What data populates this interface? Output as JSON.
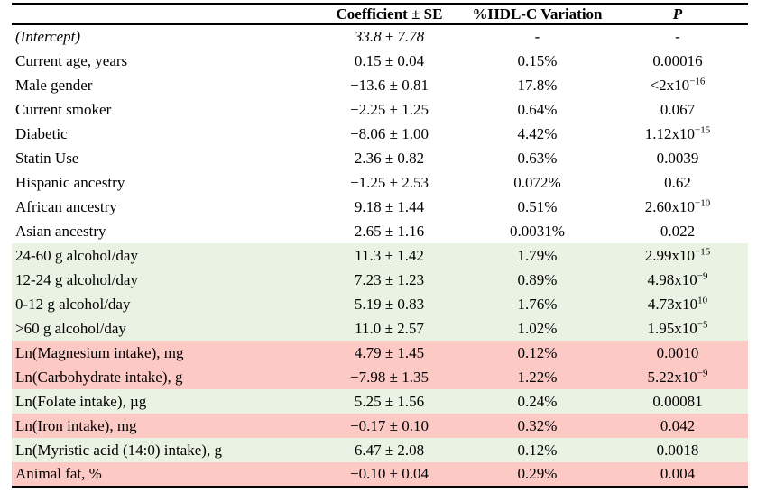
{
  "table": {
    "headers": {
      "label": "",
      "coefficient": "Coefficient ± SE",
      "variation": "%HDL-C Variation",
      "p": "P"
    },
    "colors": {
      "green": "#eaf2e3",
      "pink": "#fcc9c5",
      "border": "#000000"
    },
    "rows": [
      {
        "label": "(Intercept)",
        "coefficient": "33.8 ± 7.78",
        "variation": "-",
        "p": "-",
        "style": "plain",
        "italic": true
      },
      {
        "label": "Current age, years",
        "coefficient": "0.15 ± 0.04",
        "variation": "0.15%",
        "p": "0.00016",
        "style": "plain",
        "italic": false
      },
      {
        "label": "Male gender",
        "coefficient": "−13.6 ± 0.81",
        "variation": "17.8%",
        "p": "<2x10^−16",
        "style": "plain",
        "italic": false
      },
      {
        "label": "Current smoker",
        "coefficient": "−2.25 ± 1.25",
        "variation": "0.64%",
        "p": "0.067",
        "style": "plain",
        "italic": false
      },
      {
        "label": "Diabetic",
        "coefficient": "−8.06 ± 1.00",
        "variation": "4.42%",
        "p": "1.12x10^−15",
        "style": "plain",
        "italic": false
      },
      {
        "label": "Statin Use",
        "coefficient": "2.36 ± 0.82",
        "variation": "0.63%",
        "p": "0.0039",
        "style": "plain",
        "italic": false
      },
      {
        "label": "Hispanic ancestry",
        "coefficient": "−1.25 ± 2.53",
        "variation": "0.072%",
        "p": "0.62",
        "style": "plain",
        "italic": false
      },
      {
        "label": "African ancestry",
        "coefficient": "9.18 ± 1.44",
        "variation": "0.51%",
        "p": "2.60x10^−10",
        "style": "plain",
        "italic": false
      },
      {
        "label": "Asian ancestry",
        "coefficient": "2.65 ± 1.16",
        "variation": "0.0031%",
        "p": "0.022",
        "style": "plain",
        "italic": false
      },
      {
        "label": "24-60 g alcohol/day",
        "coefficient": "11.3 ± 1.42",
        "variation": "1.79%",
        "p": "2.99x10^−15",
        "style": "green",
        "italic": false
      },
      {
        "label": "12-24 g alcohol/day",
        "coefficient": "7.23 ± 1.23",
        "variation": "0.89%",
        "p": "4.98x10^−9",
        "style": "green",
        "italic": false
      },
      {
        "label": "0-12 g alcohol/day",
        "coefficient": "5.19 ± 0.83",
        "variation": "1.76%",
        "p": "4.73x10^10",
        "style": "green",
        "italic": false
      },
      {
        "label": ">60 g alcohol/day",
        "coefficient": "11.0 ± 2.57",
        "variation": "1.02%",
        "p": "1.95x10^−5",
        "style": "green",
        "italic": false
      },
      {
        "label": "Ln(Magnesium intake), mg",
        "coefficient": "4.79 ± 1.45",
        "variation": "0.12%",
        "p": "0.0010",
        "style": "pink",
        "italic": false
      },
      {
        "label": "Ln(Carbohydrate intake), g",
        "coefficient": "−7.98 ± 1.35",
        "variation": "1.22%",
        "p": "5.22x10^−9",
        "style": "pink",
        "italic": false
      },
      {
        "label": "Ln(Folate intake), µg",
        "coefficient": "5.25 ± 1.56",
        "variation": "0.24%",
        "p": "0.00081",
        "style": "green",
        "italic": false
      },
      {
        "label": "Ln(Iron intake), mg",
        "coefficient": "−0.17 ± 0.10",
        "variation": "0.32%",
        "p": "0.042",
        "style": "pink",
        "italic": false
      },
      {
        "label": "Ln(Myristic acid (14:0) intake), g",
        "coefficient": "6.47 ± 2.08",
        "variation": "0.12%",
        "p": "0.0018",
        "style": "green",
        "italic": false
      },
      {
        "label": "Animal fat, %",
        "coefficient": "−0.10 ± 0.04",
        "variation": "0.29%",
        "p": "0.004",
        "style": "pink",
        "italic": false
      }
    ]
  }
}
